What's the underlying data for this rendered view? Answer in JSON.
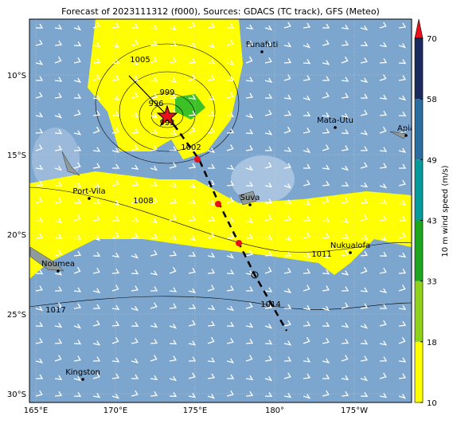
{
  "title": "Forecast of 2023111312 (f000), Sources: GDACS (TC track), GFS (Meteo)",
  "lat_labels": [
    "10°S",
    "15°S",
    "20°S",
    "25°S",
    "30°S"
  ],
  "lon_labels": [
    "165°E",
    "170°E",
    "175°E",
    "180°",
    "175°W"
  ],
  "places": [
    "Funafuti",
    "Mata-Utu",
    "Apia",
    "Port-Vila",
    "Suva",
    "Nukualofa",
    "Noumea",
    "Kingston"
  ],
  "isobar_labels": [
    "1005",
    "999",
    "996",
    "993",
    "1002",
    "1008",
    "1011",
    "1014",
    "1017"
  ],
  "colorbar": {
    "label": "10 m wind speed (m/s)",
    "ticks": [
      10,
      18,
      33,
      43,
      49,
      58,
      70
    ],
    "colors": [
      "#ffff00",
      "#8fd11c",
      "#1ea51e",
      "#069a9a",
      "#2b6d9e",
      "#1c2b5e"
    ],
    "extend_color": "#e8101a"
  }
}
